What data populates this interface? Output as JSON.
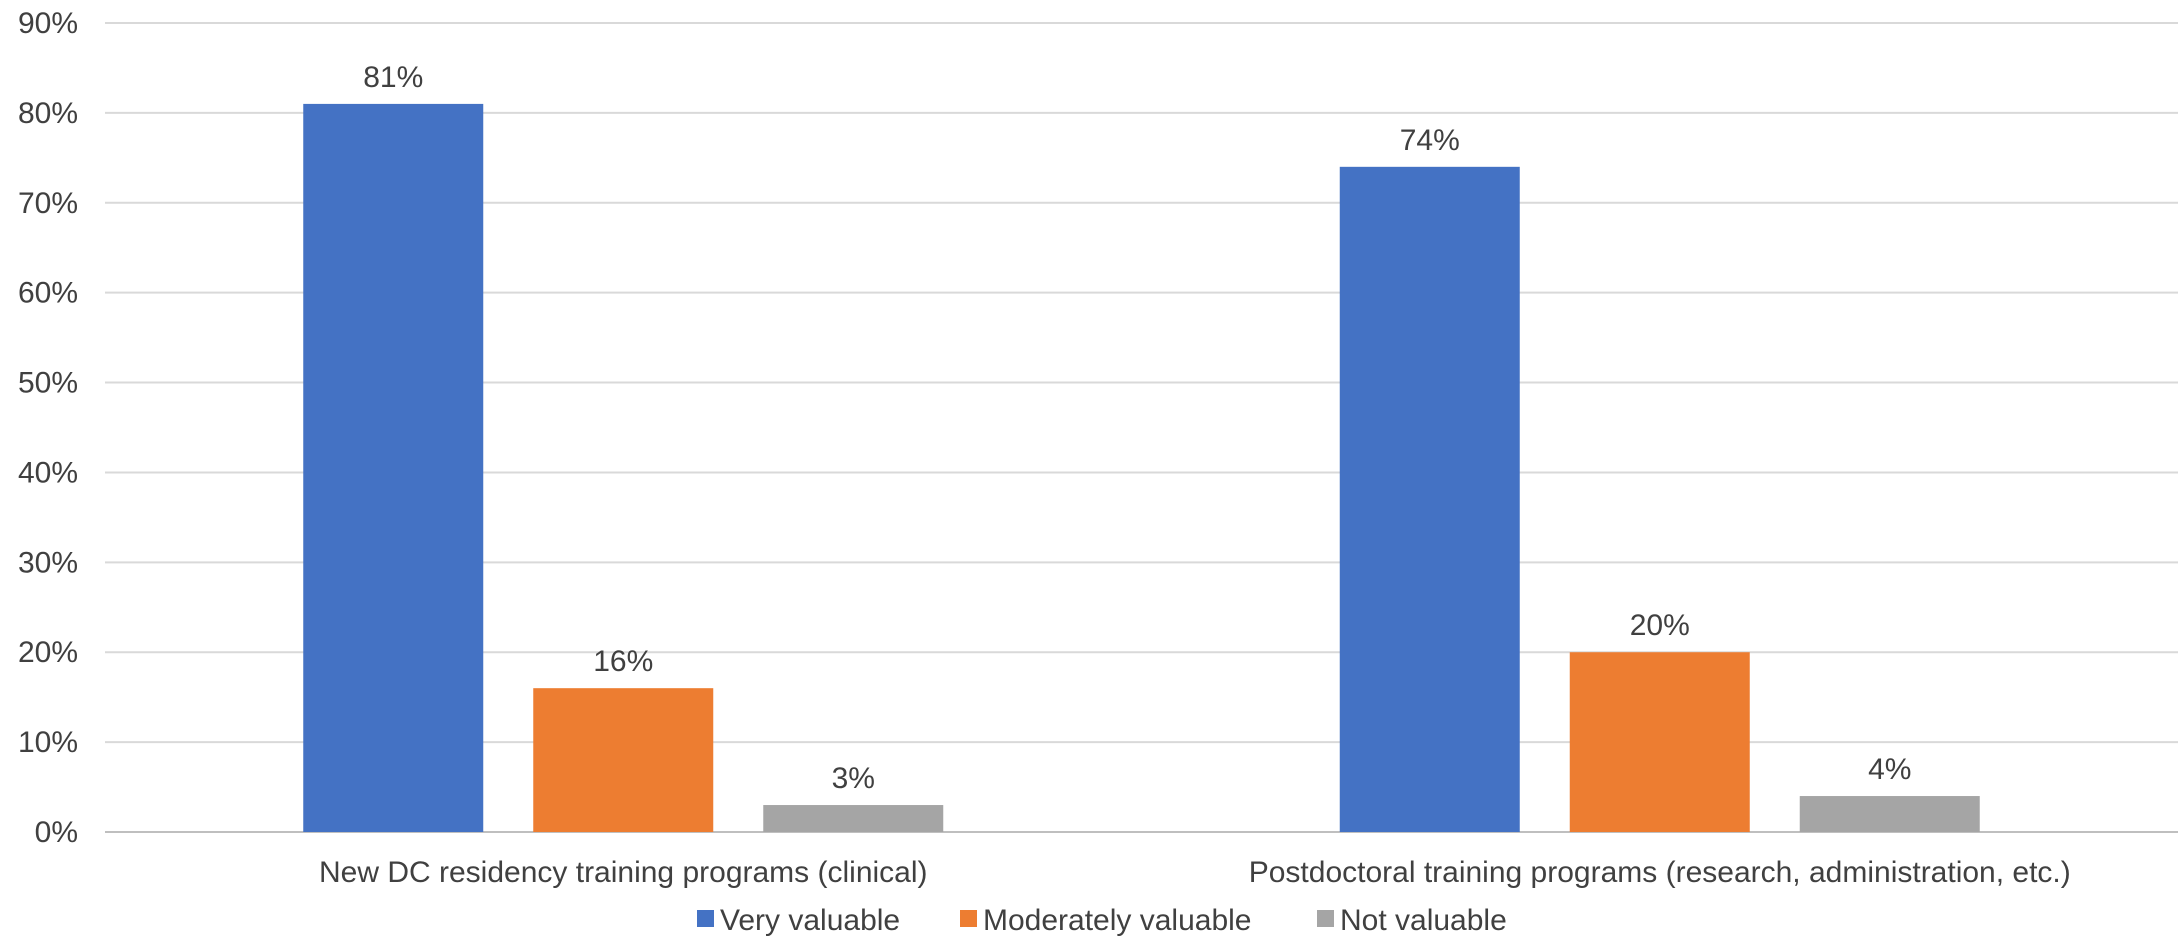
{
  "chart_data": {
    "type": "bar",
    "title": "",
    "xlabel": "",
    "ylabel": "",
    "categories": [
      "New DC residency training programs (clinical)",
      "Postdoctoral training programs (research, administration, etc.)"
    ],
    "series": [
      {
        "name": "Very valuable",
        "values": [
          81,
          74
        ],
        "labels": [
          "81%",
          "74%"
        ],
        "color": "#4472C4"
      },
      {
        "name": "Moderately valuable",
        "values": [
          16,
          20
        ],
        "labels": [
          "16%",
          "20%"
        ],
        "color": "#ED7D31"
      },
      {
        "name": "Not valuable",
        "values": [
          3,
          4
        ],
        "labels": [
          "3%",
          "4%"
        ],
        "color": "#A5A5A5"
      }
    ],
    "ylim": [
      0,
      90
    ],
    "yticks": [
      0,
      10,
      20,
      30,
      40,
      50,
      60,
      70,
      80,
      90
    ],
    "ytick_labels": [
      "0%",
      "10%",
      "20%",
      "30%",
      "40%",
      "50%",
      "60%",
      "70%",
      "80%",
      "90%"
    ],
    "grid": true,
    "gridline_color": "#D9D9D9",
    "legend_position": "bottom"
  }
}
